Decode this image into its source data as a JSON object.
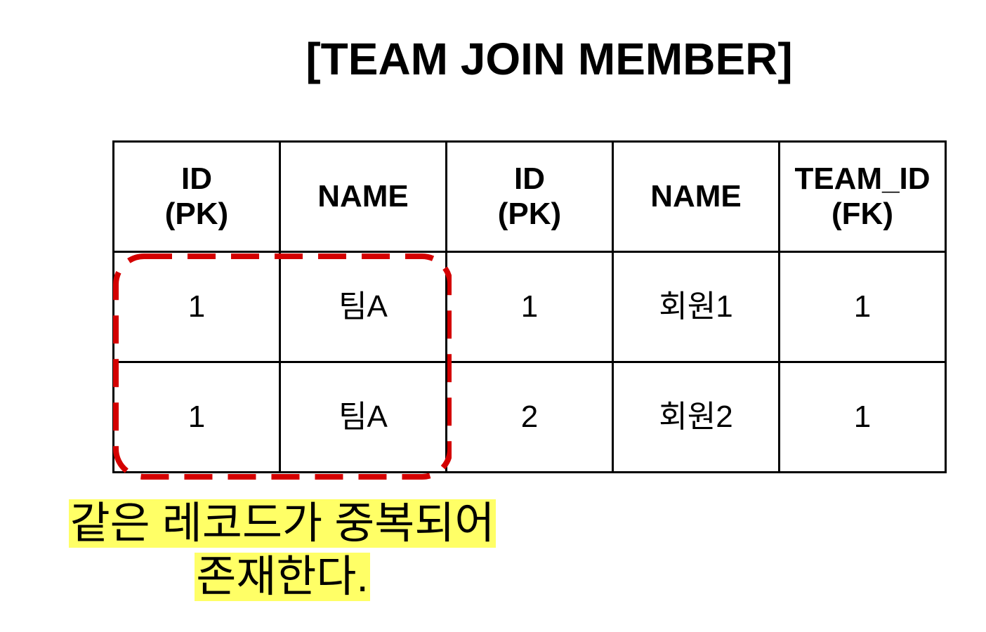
{
  "title": "[TEAM JOIN MEMBER]",
  "table": {
    "headers": [
      {
        "line1": "ID",
        "line2": "(PK)"
      },
      {
        "line1": "NAME",
        "line2": ""
      },
      {
        "line1": "ID",
        "line2": "(PK)"
      },
      {
        "line1": "NAME",
        "line2": ""
      },
      {
        "line1": "TEAM_ID",
        "line2": "(FK)"
      }
    ],
    "rows": [
      [
        "1",
        "팀A",
        "1",
        "회원1",
        "1"
      ],
      [
        "1",
        "팀A",
        "2",
        "회원2",
        "1"
      ]
    ]
  },
  "highlight": {
    "color": "#d40000",
    "style": "dashed"
  },
  "note": {
    "line1": "같은 레코드가 중복되어",
    "line2": "존재한다.",
    "background": "#ffff66"
  }
}
